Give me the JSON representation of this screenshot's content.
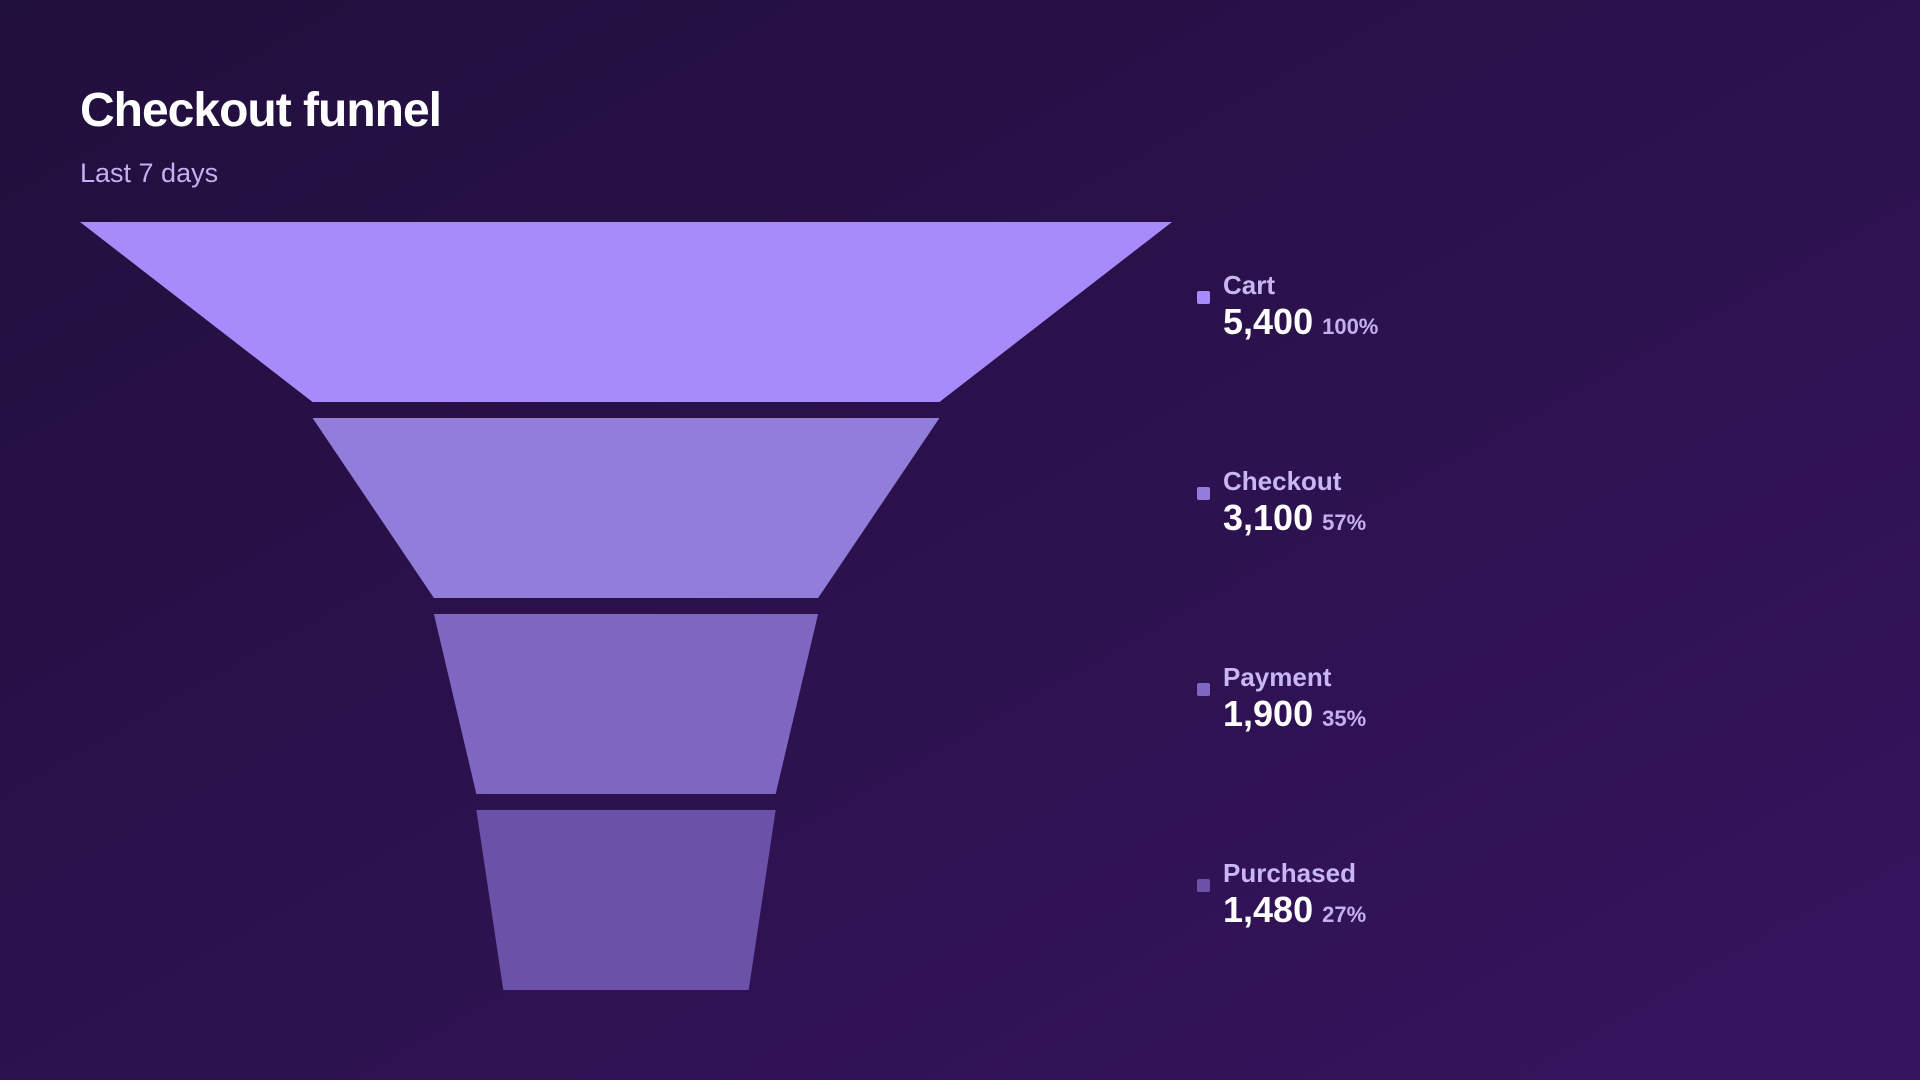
{
  "chart_data": {
    "type": "funnel",
    "title": "Checkout funnel",
    "subtitle": "Last 7 days",
    "categories": [
      "Cart",
      "Checkout",
      "Payment",
      "Purchased"
    ],
    "values": [
      5400,
      3100,
      1900,
      1480
    ],
    "value_labels": [
      "5,400",
      "3,100",
      "1,900",
      "1,480"
    ],
    "percent_labels": [
      "100%",
      "57%",
      "35%",
      "27%"
    ],
    "colors": [
      "#a78bfa",
      "#937ddb",
      "#7f66c0",
      "#6b52a8"
    ]
  }
}
